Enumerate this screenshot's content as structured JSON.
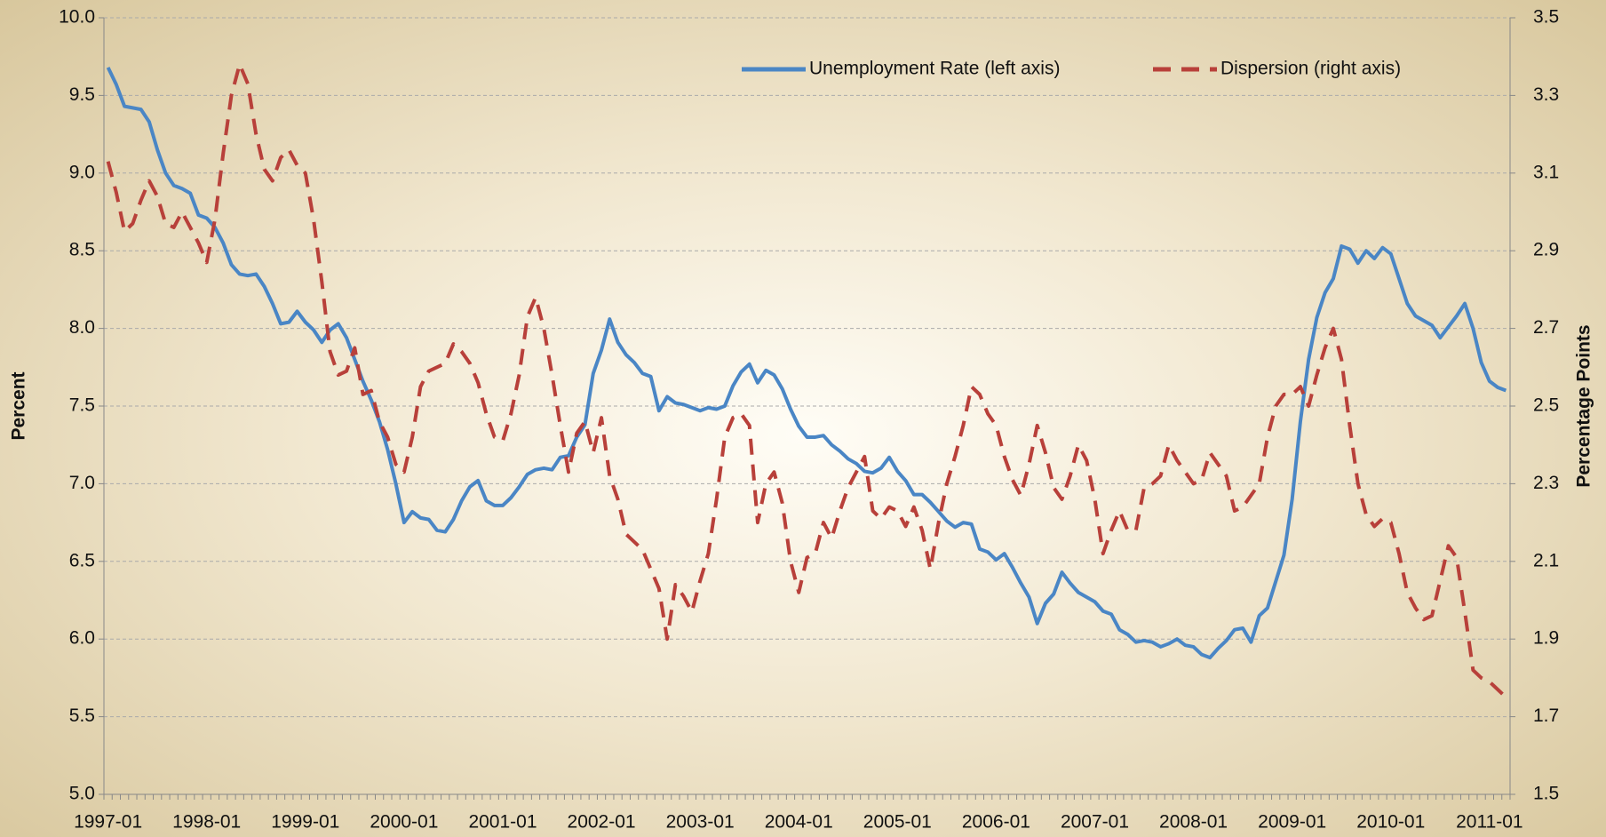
{
  "chart_data": {
    "type": "line",
    "categories": [
      "1997-01",
      null,
      null,
      null,
      null,
      null,
      null,
      null,
      null,
      null,
      null,
      null,
      "1998-01",
      null,
      null,
      null,
      null,
      null,
      null,
      null,
      null,
      null,
      null,
      null,
      "1999-01",
      null,
      null,
      null,
      null,
      null,
      null,
      null,
      null,
      null,
      null,
      null,
      "2000-01",
      null,
      null,
      null,
      null,
      null,
      null,
      null,
      null,
      null,
      null,
      null,
      "2001-01",
      null,
      null,
      null,
      null,
      null,
      null,
      null,
      null,
      null,
      null,
      null,
      "2002-01",
      null,
      null,
      null,
      null,
      null,
      null,
      null,
      null,
      null,
      null,
      null,
      "2003-01",
      null,
      null,
      null,
      null,
      null,
      null,
      null,
      null,
      null,
      null,
      null,
      "2004-01",
      null,
      null,
      null,
      null,
      null,
      null,
      null,
      null,
      null,
      null,
      null,
      "2005-01",
      null,
      null,
      null,
      null,
      null,
      null,
      null,
      null,
      null,
      null,
      null,
      "2006-01",
      null,
      null,
      null,
      null,
      null,
      null,
      null,
      null,
      null,
      null,
      null,
      "2007-01",
      null,
      null,
      null,
      null,
      null,
      null,
      null,
      null,
      null,
      null,
      null,
      "2008-01",
      null,
      null,
      null,
      null,
      null,
      null,
      null,
      null,
      null,
      null,
      null,
      "2009-01",
      null,
      null,
      null,
      null,
      null,
      null,
      null,
      null,
      null,
      null,
      null,
      "2010-01",
      null,
      null,
      null,
      null,
      null,
      null,
      null,
      null,
      null,
      null,
      null,
      "2011-01",
      null,
      null
    ],
    "series": [
      {
        "name": "Unemployment Rate (left axis)",
        "color": "#4a86c5",
        "dash": "solid",
        "values": [
          9.68,
          9.57,
          9.43,
          9.42,
          9.41,
          9.33,
          9.15,
          9.0,
          8.92,
          8.9,
          8.87,
          8.73,
          8.71,
          8.65,
          8.55,
          8.41,
          8.35,
          8.34,
          8.35,
          8.27,
          8.16,
          8.03,
          8.04,
          8.11,
          8.04,
          7.99,
          7.91,
          7.99,
          8.03,
          7.94,
          7.8,
          7.66,
          7.54,
          7.4,
          7.22,
          7.0,
          6.75,
          6.82,
          6.78,
          6.77,
          6.7,
          6.69,
          6.77,
          6.89,
          6.98,
          7.02,
          6.89,
          6.86,
          6.86,
          6.91,
          6.98,
          7.06,
          7.09,
          7.1,
          7.09,
          7.17,
          7.18,
          7.3,
          7.38,
          7.71,
          7.86,
          8.06,
          7.91,
          7.83,
          7.78,
          7.71,
          7.69,
          7.47,
          7.56,
          7.52,
          7.51,
          7.49,
          7.47,
          7.49,
          7.48,
          7.5,
          7.63,
          7.72,
          7.77,
          7.65,
          7.73,
          7.7,
          7.61,
          7.48,
          7.37,
          7.3,
          7.3,
          7.31,
          7.25,
          7.21,
          7.16,
          7.13,
          7.08,
          7.07,
          7.1,
          7.17,
          7.08,
          7.02,
          6.93,
          6.93,
          6.88,
          6.82,
          6.76,
          6.72,
          6.75,
          6.74,
          6.58,
          6.56,
          6.51,
          6.55,
          6.46,
          6.36,
          6.27,
          6.1,
          6.23,
          6.29,
          6.43,
          6.36,
          6.3,
          6.27,
          6.24,
          6.18,
          6.16,
          6.06,
          6.03,
          5.98,
          5.99,
          5.98,
          5.95,
          5.97,
          6.0,
          5.96,
          5.95,
          5.9,
          5.88,
          5.94,
          5.99,
          6.06,
          6.07,
          5.98,
          6.15,
          6.2,
          6.37,
          6.54,
          6.9,
          7.4,
          7.8,
          8.07,
          8.23,
          8.32,
          8.53,
          8.51,
          8.42,
          8.5,
          8.45,
          8.52,
          8.48,
          8.32,
          8.16,
          8.08,
          8.05,
          8.02,
          7.94,
          8.01,
          8.08,
          8.16,
          8.0,
          7.78,
          7.66,
          7.62,
          7.6
        ]
      },
      {
        "name": "Dispersion (right axis)",
        "color": "#b8403a",
        "dash": "dashed",
        "axis": "y2",
        "values": [
          3.13,
          3.05,
          2.95,
          2.97,
          3.03,
          3.08,
          3.04,
          2.97,
          2.96,
          3.0,
          2.96,
          2.92,
          2.87,
          2.98,
          3.15,
          3.3,
          3.38,
          3.33,
          3.2,
          3.11,
          3.08,
          3.14,
          3.16,
          3.12,
          3.1,
          2.98,
          2.82,
          2.64,
          2.58,
          2.59,
          2.65,
          2.53,
          2.54,
          2.46,
          2.42,
          2.35,
          2.33,
          2.42,
          2.55,
          2.59,
          2.6,
          2.61,
          2.66,
          2.64,
          2.61,
          2.56,
          2.48,
          2.42,
          2.41,
          2.48,
          2.58,
          2.73,
          2.78,
          2.7,
          2.58,
          2.45,
          2.33,
          2.43,
          2.46,
          2.38,
          2.47,
          2.32,
          2.26,
          2.17,
          2.15,
          2.13,
          2.08,
          2.03,
          1.9,
          2.04,
          2.01,
          1.97,
          2.05,
          2.12,
          2.26,
          2.42,
          2.47,
          2.48,
          2.45,
          2.2,
          2.3,
          2.33,
          2.25,
          2.1,
          2.02,
          2.11,
          2.12,
          2.2,
          2.16,
          2.23,
          2.29,
          2.33,
          2.37,
          2.23,
          2.21,
          2.24,
          2.23,
          2.19,
          2.24,
          2.18,
          2.08,
          2.2,
          2.3,
          2.37,
          2.45,
          2.55,
          2.53,
          2.48,
          2.45,
          2.37,
          2.31,
          2.27,
          2.35,
          2.45,
          2.38,
          2.29,
          2.26,
          2.32,
          2.4,
          2.36,
          2.26,
          2.12,
          2.18,
          2.23,
          2.18,
          2.18,
          2.29,
          2.3,
          2.32,
          2.4,
          2.36,
          2.33,
          2.3,
          2.31,
          2.38,
          2.35,
          2.32,
          2.23,
          2.24,
          2.27,
          2.3,
          2.42,
          2.5,
          2.53,
          2.53,
          2.55,
          2.5,
          2.58,
          2.65,
          2.7,
          2.62,
          2.45,
          2.3,
          2.22,
          2.19,
          2.21,
          2.2,
          2.12,
          2.02,
          1.98,
          1.95,
          1.96,
          2.05,
          2.14,
          2.11,
          1.97,
          1.82,
          1.8,
          1.79,
          1.77,
          1.75
        ]
      }
    ],
    "ylabel": "Percent",
    "y2label": "Percentage Points",
    "ylim": [
      5,
      10
    ],
    "yticks": [
      {
        "value": 5,
        "label": "5.0"
      },
      5.5,
      {
        "value": 6,
        "label": "6.0"
      },
      6.5,
      {
        "value": 7,
        "label": "7.0"
      },
      7.5,
      {
        "value": 8,
        "label": "8.0"
      },
      8.5,
      {
        "value": 9,
        "label": "9.0"
      },
      9.5,
      {
        "value": 10,
        "label": "10.0"
      }
    ],
    "y2lim": [
      1.5,
      3.5
    ],
    "y2ticks": [
      1.5,
      1.7,
      1.9,
      2.1,
      2.3,
      2.5,
      2.7,
      2.9,
      3.1,
      3.3,
      3.5
    ],
    "grid": true,
    "legend": "top"
  }
}
